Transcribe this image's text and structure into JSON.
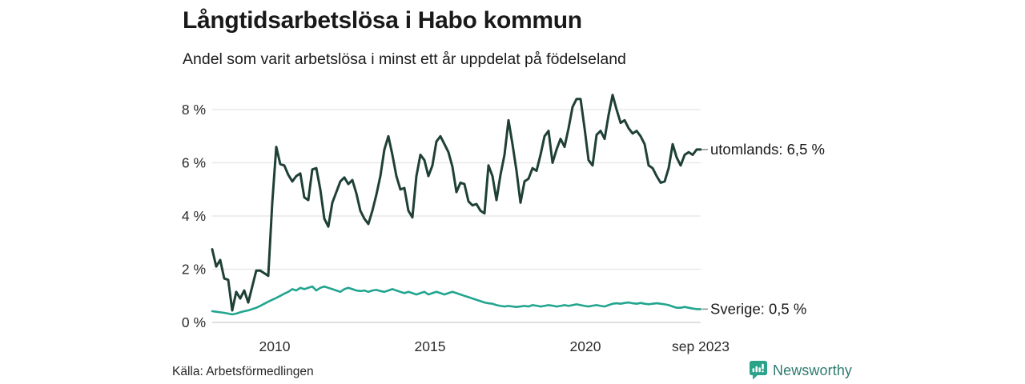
{
  "header": {
    "title": "Långtidsarbetslösa i Habo kommun",
    "subtitle": "Andel som varit arbetslösa i minst ett år uppdelat på födelseland"
  },
  "footer": {
    "source": "Källa: Arbetsförmedlingen"
  },
  "brand": {
    "name": "Newsworthy",
    "icon": "newsworthy-chart-bubble-icon",
    "icon_color": "#2ba28a",
    "text_color": "#2e7b70"
  },
  "colors": {
    "gridline": "#e4e4e4",
    "baseline": "#cccccc",
    "tick_text": "#2b2b2b",
    "leader_dash": "#8c8c8c"
  },
  "chart_data": {
    "type": "line",
    "title": "Långtidsarbetslösa i Habo kommun",
    "subtitle": "Andel som varit arbetslösa i minst ett år uppdelat på födelseland",
    "unit": "%",
    "time_note": "monthly values from 2008 to sep 2023, read off chart",
    "grid": true,
    "ylim": [
      0,
      8.8
    ],
    "y_ticks": [
      {
        "label": "0 %",
        "value": 0
      },
      {
        "label": "2 %",
        "value": 2
      },
      {
        "label": "4 %",
        "value": 4
      },
      {
        "label": "6 %",
        "value": 6
      },
      {
        "label": "8 %",
        "value": 8
      }
    ],
    "x_ticks": [
      {
        "label": "2010",
        "pos": 0.1279
      },
      {
        "label": "2015",
        "pos": 0.4459
      },
      {
        "label": "2020",
        "pos": 0.7639
      },
      {
        "label": "sep 2023",
        "pos": 1.0
      }
    ],
    "series": [
      {
        "name": "utomlands",
        "end_label": "utomlands: 6,5 %",
        "last_value": 6.5,
        "color": "#1f4037",
        "stroke_width": 3,
        "values": [
          2.75,
          2.1,
          2.35,
          1.65,
          1.6,
          0.45,
          1.15,
          0.9,
          1.2,
          0.75,
          1.35,
          1.95,
          1.95,
          1.85,
          1.75,
          4.5,
          6.6,
          5.95,
          5.9,
          5.55,
          5.3,
          5.5,
          5.6,
          4.7,
          4.6,
          5.75,
          5.8,
          5.0,
          3.9,
          3.6,
          4.5,
          4.9,
          5.3,
          5.45,
          5.2,
          5.35,
          4.85,
          4.2,
          3.9,
          3.7,
          4.2,
          4.8,
          5.5,
          6.5,
          7.0,
          6.3,
          5.5,
          5.0,
          5.05,
          4.2,
          3.95,
          5.5,
          6.3,
          6.1,
          5.5,
          5.9,
          6.8,
          7.0,
          6.7,
          6.4,
          5.85,
          4.9,
          5.25,
          5.2,
          4.55,
          4.4,
          4.45,
          4.2,
          4.1,
          5.9,
          5.5,
          4.6,
          5.55,
          6.3,
          7.6,
          6.7,
          5.7,
          4.5,
          5.3,
          5.4,
          5.8,
          5.7,
          6.3,
          7.0,
          7.2,
          6.0,
          6.5,
          6.9,
          6.6,
          7.3,
          8.1,
          8.4,
          8.4,
          7.3,
          6.1,
          5.9,
          7.05,
          7.2,
          6.9,
          7.8,
          8.55,
          8.0,
          7.5,
          7.6,
          7.3,
          7.1,
          7.2,
          7.0,
          6.7,
          5.9,
          5.8,
          5.5,
          5.25,
          5.3,
          5.8,
          6.7,
          6.2,
          5.9,
          6.3,
          6.4,
          6.3,
          6.5,
          6.5
        ]
      },
      {
        "name": "Sverige",
        "end_label": "Sverige: 0,5 %",
        "last_value": 0.5,
        "color": "#21a58e",
        "stroke_width": 2.6,
        "values": [
          0.42,
          0.4,
          0.38,
          0.36,
          0.33,
          0.3,
          0.33,
          0.38,
          0.42,
          0.45,
          0.5,
          0.55,
          0.62,
          0.7,
          0.78,
          0.85,
          0.92,
          1.0,
          1.08,
          1.15,
          1.25,
          1.2,
          1.3,
          1.25,
          1.3,
          1.35,
          1.2,
          1.3,
          1.35,
          1.3,
          1.25,
          1.2,
          1.15,
          1.25,
          1.3,
          1.25,
          1.2,
          1.18,
          1.2,
          1.15,
          1.2,
          1.22,
          1.18,
          1.15,
          1.2,
          1.25,
          1.2,
          1.15,
          1.1,
          1.15,
          1.1,
          1.05,
          1.1,
          1.15,
          1.05,
          1.1,
          1.15,
          1.1,
          1.05,
          1.1,
          1.15,
          1.1,
          1.05,
          1.0,
          0.95,
          0.9,
          0.85,
          0.8,
          0.75,
          0.72,
          0.7,
          0.65,
          0.62,
          0.6,
          0.62,
          0.6,
          0.58,
          0.6,
          0.62,
          0.6,
          0.65,
          0.63,
          0.6,
          0.62,
          0.65,
          0.63,
          0.6,
          0.62,
          0.65,
          0.62,
          0.65,
          0.68,
          0.65,
          0.62,
          0.6,
          0.63,
          0.65,
          0.62,
          0.6,
          0.65,
          0.7,
          0.72,
          0.7,
          0.73,
          0.75,
          0.72,
          0.7,
          0.73,
          0.7,
          0.68,
          0.7,
          0.72,
          0.7,
          0.68,
          0.65,
          0.6,
          0.55,
          0.55,
          0.58,
          0.55,
          0.52,
          0.5,
          0.5
        ]
      }
    ],
    "legend_position": "end-of-line labels, right side"
  }
}
